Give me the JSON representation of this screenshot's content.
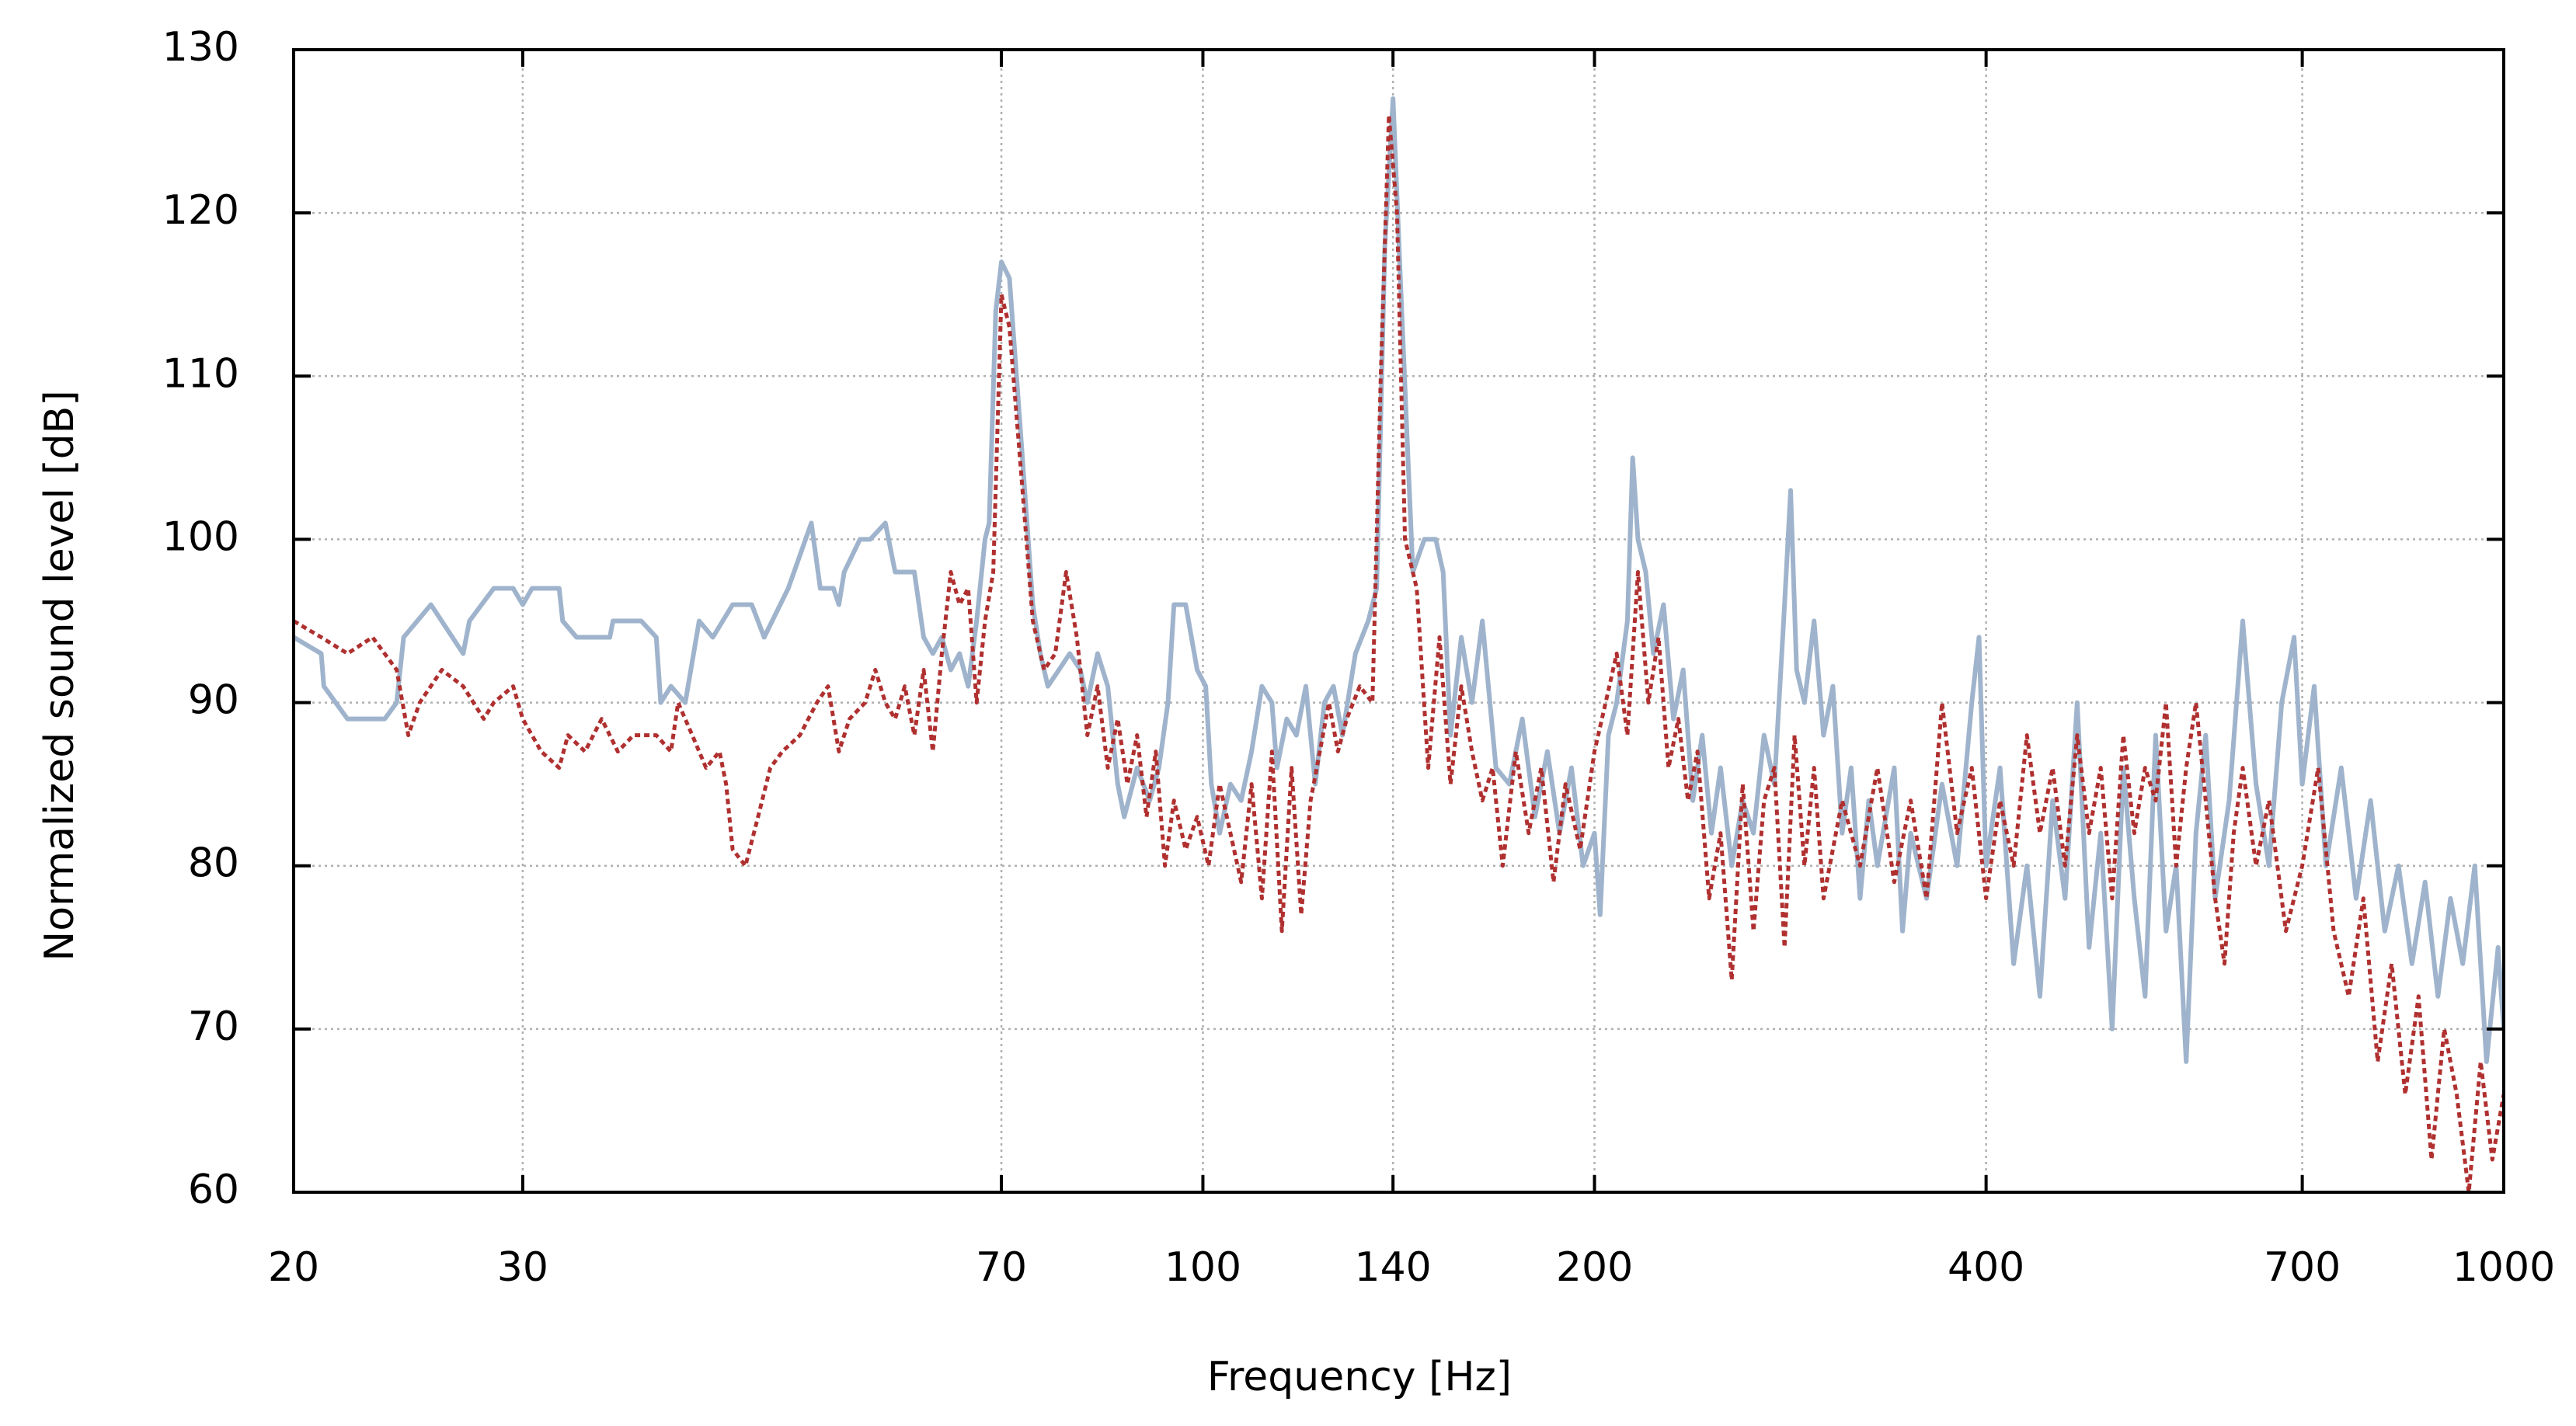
{
  "chart_data": {
    "type": "line",
    "xlabel": "Frequency [Hz]",
    "ylabel": "Normalized sound level [dB]",
    "xscale": "log",
    "grid": true,
    "xlim": [
      20,
      1000
    ],
    "xticks": [
      20,
      30,
      70,
      100,
      140,
      200,
      400,
      700,
      1000
    ],
    "ylim": [
      60,
      130
    ],
    "yticks": [
      60,
      70,
      80,
      90,
      100,
      110,
      120,
      130
    ],
    "series": [
      {
        "color": "#9fb4cc",
        "style": "solid",
        "x": [
          20,
          21,
          21.1,
          22,
          23.5,
          24,
          24.3,
          25.5,
          27,
          27.3,
          28.5,
          29.5,
          30,
          30.5,
          32,
          32.2,
          33,
          35,
          35.2,
          37,
          38,
          38.3,
          39,
          40,
          41,
          42,
          43.5,
          45,
          46,
          48,
          50,
          50.8,
          52,
          52.5,
          53,
          54.5,
          55.5,
          57,
          58,
          60,
          61,
          62,
          63,
          64,
          65,
          66,
          67,
          68,
          68.5,
          69.3,
          70,
          71,
          72.5,
          74,
          75,
          76,
          77.5,
          79,
          80.5,
          81.5,
          83,
          84.5,
          86,
          87,
          89,
          91,
          92.5,
          94,
          95,
          97,
          99,
          100.5,
          101.5,
          103,
          105,
          107,
          109,
          111,
          113,
          114,
          116,
          118,
          120,
          122,
          124,
          126,
          128,
          131,
          134,
          136,
          138,
          140,
          142,
          145,
          148,
          151,
          153,
          155,
          158,
          161,
          164,
          168,
          172,
          176,
          180,
          184,
          188,
          192,
          196,
          200,
          202,
          205,
          208,
          212,
          214,
          216,
          219,
          222,
          226,
          230,
          234,
          238,
          242,
          246,
          250,
          255,
          260,
          265,
          270,
          275,
          280,
          283,
          286,
          290,
          295,
          300,
          305,
          310,
          315,
          320,
          325,
          330,
          340,
          345,
          350,
          360,
          370,
          380,
          390,
          395,
          400,
          410,
          420,
          430,
          440,
          450,
          460,
          470,
          480,
          490,
          500,
          510,
          520,
          530,
          540,
          550,
          560,
          570,
          580,
          590,
          600,
          615,
          630,
          645,
          660,
          675,
          690,
          700,
          715,
          730,
          750,
          770,
          790,
          810,
          830,
          850,
          870,
          890,
          910,
          930,
          950,
          970,
          990,
          1000
        ],
        "values": [
          94,
          93,
          91,
          89,
          89,
          90,
          94,
          96,
          93,
          95,
          97,
          97,
          96,
          97,
          97,
          95,
          94,
          94,
          95,
          95,
          94,
          90,
          91,
          90,
          95,
          94,
          96,
          96,
          94,
          97,
          101,
          97,
          97,
          96,
          98,
          100,
          100,
          101,
          98,
          98,
          94,
          93,
          94,
          92,
          93,
          91,
          95,
          100,
          101,
          114,
          117,
          116,
          106,
          96,
          93,
          91,
          92,
          93,
          92,
          90,
          93,
          91,
          85,
          83,
          86,
          84,
          86,
          90,
          96,
          96,
          92,
          91,
          85,
          82,
          85,
          84,
          87,
          91,
          90,
          86,
          89,
          88,
          91,
          85,
          90,
          91,
          88,
          93,
          95,
          97,
          118,
          127,
          115,
          98,
          100,
          100,
          98,
          88,
          94,
          90,
          95,
          86,
          85,
          89,
          83,
          87,
          82,
          86,
          80,
          82,
          77,
          88,
          90,
          95,
          105,
          100,
          98,
          93,
          96,
          89,
          92,
          84,
          88,
          82,
          86,
          80,
          84,
          82,
          88,
          85,
          96,
          103,
          92,
          90,
          95,
          88,
          91,
          82,
          86,
          78,
          84,
          80,
          86,
          76,
          82,
          78,
          85,
          80,
          90,
          94,
          80,
          86,
          74,
          80,
          72,
          84,
          78,
          90,
          75,
          82,
          70,
          86,
          78,
          72,
          88,
          76,
          80,
          68,
          82,
          88,
          78,
          84,
          95,
          85,
          80,
          90,
          94,
          85,
          91,
          80,
          86,
          78,
          84,
          76,
          80,
          74,
          79,
          72,
          78,
          74,
          80,
          68,
          75,
          70
        ]
      },
      {
        "color": "#b03030",
        "style": "dotted",
        "x": [
          20,
          21,
          22,
          23,
          24,
          24.5,
          25,
          26,
          27,
          28,
          28.5,
          29.5,
          30,
          31,
          32,
          32.5,
          33.5,
          34.5,
          35.5,
          36.5,
          38,
          39,
          39.5,
          40.5,
          41.5,
          42.5,
          43,
          43.5,
          44.5,
          45.5,
          46.5,
          47.5,
          49,
          50.5,
          51.5,
          52.5,
          53.5,
          55,
          56,
          57,
          58,
          59,
          60,
          61,
          62,
          63,
          64,
          65,
          66,
          67,
          68,
          69,
          70,
          71,
          72.5,
          74,
          75.5,
          77,
          78.5,
          80,
          81.5,
          83,
          84.5,
          86,
          87.5,
          89,
          90.5,
          92,
          93.5,
          95,
          97,
          99,
          101,
          103,
          105,
          107,
          109,
          111,
          113,
          115,
          117,
          119,
          121,
          123,
          125,
          127,
          129,
          132,
          135,
          137,
          139,
          141,
          143,
          146,
          149,
          152,
          155,
          158,
          161,
          164,
          167,
          170,
          174,
          178,
          182,
          186,
          190,
          195,
          200,
          204,
          208,
          212,
          216,
          220,
          224,
          228,
          232,
          236,
          240,
          245,
          250,
          255,
          260,
          265,
          270,
          275,
          280,
          285,
          290,
          295,
          300,
          310,
          320,
          330,
          340,
          350,
          360,
          370,
          380,
          390,
          400,
          410,
          420,
          430,
          440,
          450,
          460,
          470,
          480,
          490,
          500,
          510,
          520,
          530,
          540,
          550,
          560,
          570,
          580,
          590,
          600,
          610,
          620,
          630,
          645,
          660,
          680,
          700,
          720,
          740,
          760,
          780,
          800,
          820,
          840,
          860,
          880,
          900,
          920,
          940,
          960,
          980,
          1000
        ],
        "values": [
          95,
          94,
          93,
          94,
          92,
          88,
          90,
          92,
          91,
          89,
          90,
          91,
          89,
          87,
          86,
          88,
          87,
          89,
          87,
          88,
          88,
          87,
          90,
          88,
          86,
          87,
          85,
          81,
          80,
          83,
          86,
          87,
          88,
          90,
          91,
          87,
          89,
          90,
          92,
          90,
          89,
          91,
          88,
          92,
          87,
          93,
          98,
          96,
          97,
          90,
          95,
          98,
          115,
          113,
          104,
          95,
          92,
          93,
          98,
          94,
          88,
          91,
          86,
          89,
          85,
          88,
          83,
          87,
          80,
          84,
          81,
          83,
          80,
          85,
          82,
          79,
          85,
          78,
          87,
          76,
          86,
          77,
          84,
          87,
          90,
          87,
          89,
          91,
          90,
          110,
          126,
          120,
          100,
          97,
          86,
          94,
          85,
          91,
          87,
          84,
          86,
          80,
          87,
          82,
          86,
          79,
          85,
          81,
          87,
          90,
          93,
          88,
          98,
          90,
          94,
          86,
          89,
          84,
          87,
          78,
          82,
          73,
          85,
          76,
          84,
          86,
          75,
          88,
          80,
          86,
          78,
          84,
          80,
          86,
          79,
          84,
          78,
          90,
          82,
          86,
          78,
          84,
          80,
          88,
          82,
          86,
          80,
          88,
          82,
          86,
          78,
          88,
          82,
          86,
          84,
          90,
          80,
          86,
          90,
          84,
          78,
          74,
          82,
          86,
          80,
          84,
          76,
          80,
          86,
          76,
          72,
          78,
          68,
          74,
          66,
          72,
          62,
          70,
          66,
          60,
          68,
          62,
          66
        ]
      }
    ]
  }
}
